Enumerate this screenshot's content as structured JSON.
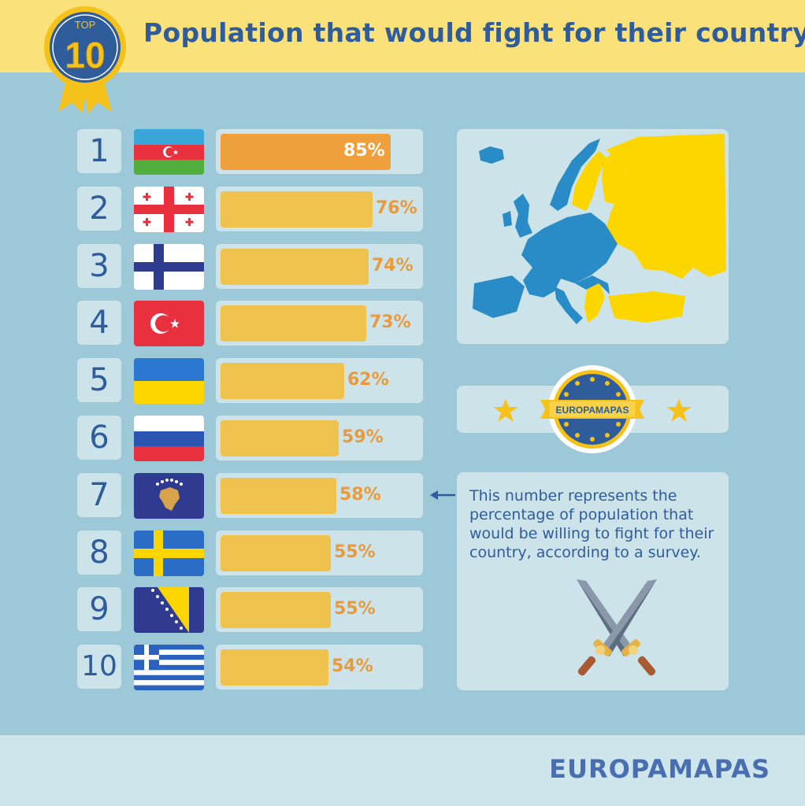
{
  "header": {
    "badge_top": "TOP",
    "badge_number": "10",
    "title": "Population that would fight for their country"
  },
  "chart_data": {
    "type": "bar",
    "title": "Population that would fight for their country",
    "unit": "%",
    "categories": [
      "Azerbaijan",
      "Georgia",
      "Finland",
      "Turkey",
      "Ukraine",
      "Russia",
      "Kosovo",
      "Sweden",
      "Bosnia and Herzegovina",
      "Greece"
    ],
    "ranks": [
      "1",
      "2",
      "3",
      "4",
      "5",
      "6",
      "7",
      "8",
      "9",
      "10"
    ],
    "labels": [
      "85%",
      "76%",
      "74%",
      "73%",
      "62%",
      "59%",
      "58%",
      "55%",
      "55%",
      "54%"
    ],
    "values": [
      85,
      76,
      74,
      73,
      62,
      59,
      58,
      55,
      55,
      54
    ],
    "xlim": [
      0,
      100
    ],
    "colors": {
      "top": "#ef9f3b",
      "rest": "#efc24d",
      "label": "#e89a3c"
    }
  },
  "map": {
    "highlight_color": "#fdd600",
    "base_color": "#2a8cc6"
  },
  "emblem": {
    "label": "EUROPAMAPAS"
  },
  "note": {
    "text": "This number represents the percentage of population that would be willing to fight for their country, according to a survey."
  },
  "footer": {
    "brand": "EUROPAMAPAS"
  }
}
